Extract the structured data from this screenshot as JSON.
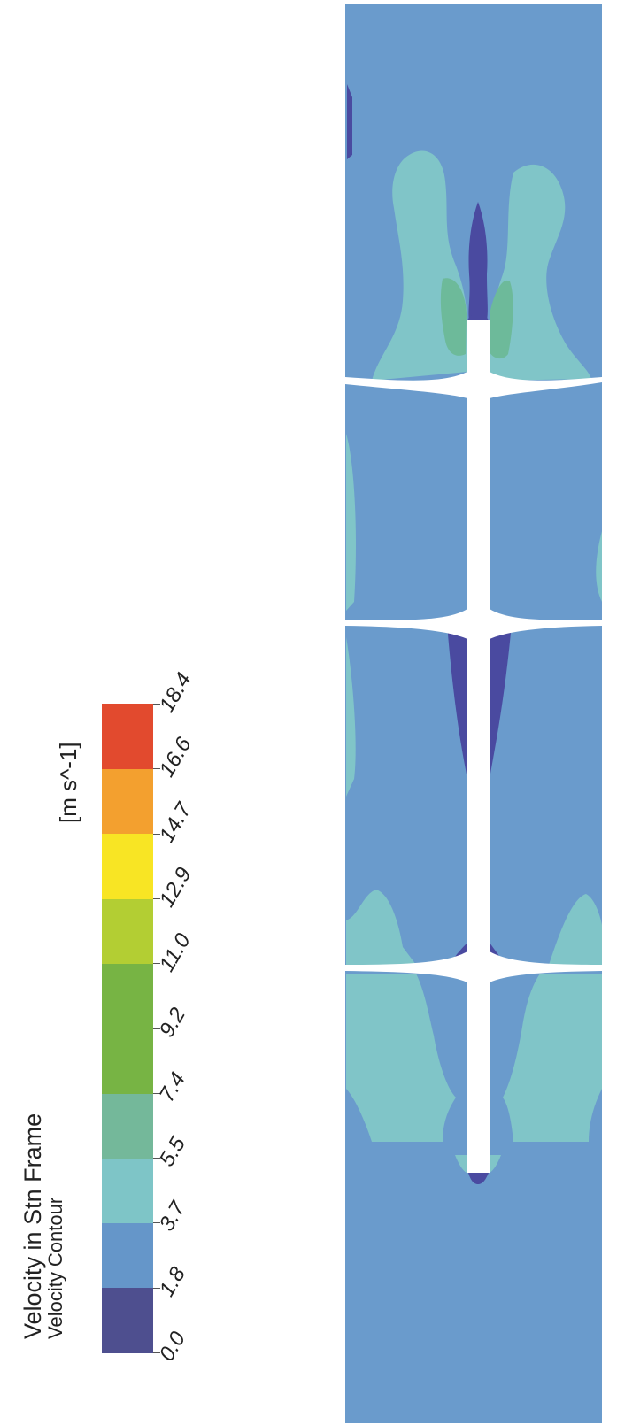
{
  "legend": {
    "title": "Velocity in Stn Frame",
    "subtitle": "Velocity Contour",
    "units": "[m s^-1]",
    "tick_labels": [
      "0.0",
      "1.8",
      "3.7",
      "5.5",
      "7.4",
      "9.2",
      "11.0",
      "12.9",
      "14.7",
      "16.6",
      "18.4"
    ],
    "band_colors": [
      "#4e4f8f",
      "#6596c9",
      "#7ec5c7",
      "#74b89a",
      "#77b444",
      "#77b444",
      "#b3ce33",
      "#f8e524",
      "#f3a02f",
      "#e24a2e"
    ]
  },
  "contour_colors": {
    "background": "#6a9bcc",
    "low": "#4a4aa0",
    "mid": "#80c5c8",
    "high": "#6dba9a",
    "geometry": "#ffffff"
  }
}
